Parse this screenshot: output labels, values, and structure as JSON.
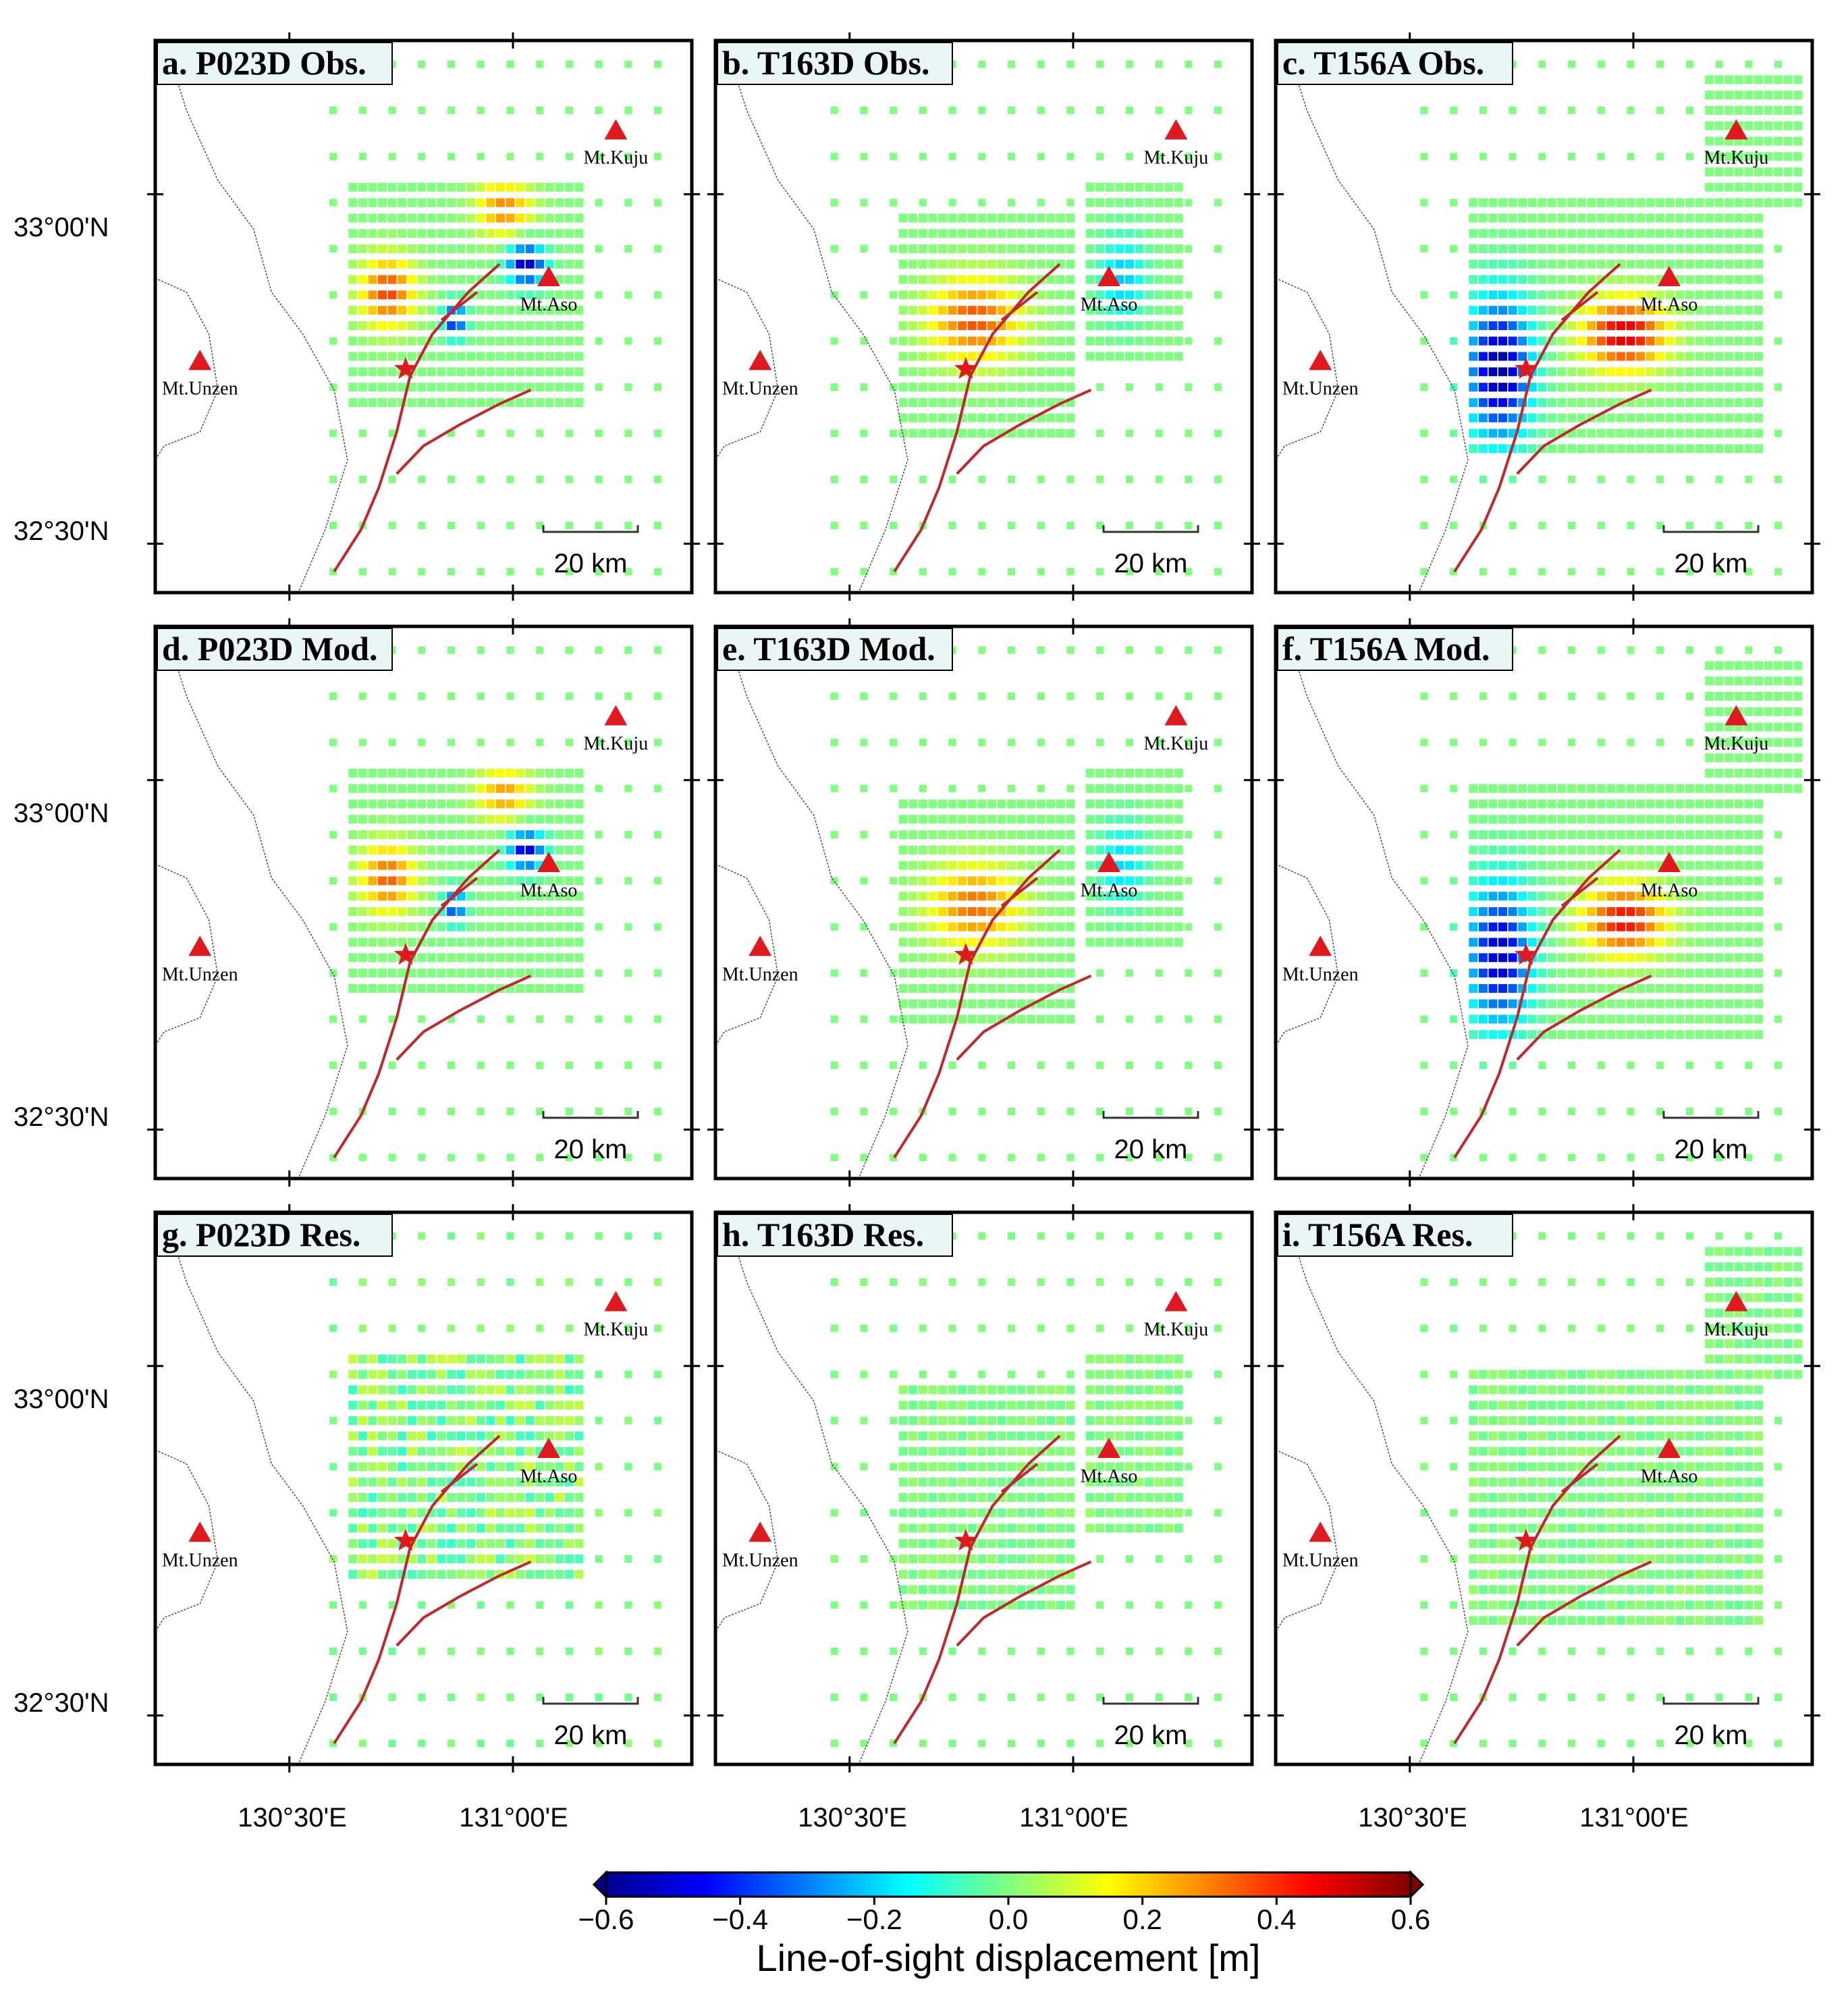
{
  "figure": {
    "panels": [
      {
        "id": "a",
        "title": "a. P023D Obs.",
        "track": "P023D",
        "kind": "obs"
      },
      {
        "id": "b",
        "title": "b. T163D Obs.",
        "track": "T163D",
        "kind": "obs"
      },
      {
        "id": "c",
        "title": "c. T156A Obs.",
        "track": "T156A",
        "kind": "obs"
      },
      {
        "id": "d",
        "title": "d. P023D Mod.",
        "track": "P023D",
        "kind": "mod"
      },
      {
        "id": "e",
        "title": "e. T163D Mod.",
        "track": "T163D",
        "kind": "mod"
      },
      {
        "id": "f",
        "title": "f. T156A Mod.",
        "track": "T156A",
        "kind": "mod"
      },
      {
        "id": "g",
        "title": "g. P023D Res.",
        "track": "P023D",
        "kind": "res"
      },
      {
        "id": "h",
        "title": "h. T163D Res.",
        "track": "T163D",
        "kind": "res"
      },
      {
        "id": "i",
        "title": "i. T156A Res.",
        "track": "T156A",
        "kind": "res"
      }
    ],
    "lat_ticks": [
      "33°00'N",
      "32°30'N"
    ],
    "lon_ticks": [
      "130°30'E",
      "131°00'E"
    ],
    "volcanoes": [
      {
        "name": "Mt.Kuju",
        "lon": 131.23,
        "lat": 33.09
      },
      {
        "name": "Mt.Aso",
        "lon": 131.08,
        "lat": 32.88
      },
      {
        "name": "Mt.Unzen",
        "lon": 130.3,
        "lat": 32.76
      }
    ],
    "epicenter": {
      "lon": 130.76,
      "lat": 32.75
    },
    "scale_bar": "20 km",
    "colorbar": {
      "min": -0.6,
      "max": 0.6,
      "ticks": [
        "-0.6",
        "-0.4",
        "-0.2",
        "0.0",
        "0.2",
        "0.4",
        "0.6"
      ],
      "label": "Line-of-sight displacement [m]",
      "colors": [
        "#00008f",
        "#0000ff",
        "#0080ff",
        "#00ffff",
        "#80ff80",
        "#ffff00",
        "#ff8000",
        "#ff0000",
        "#800000"
      ]
    },
    "colors": {
      "fault": "#c0282c",
      "volcano": "#e0191f",
      "epicenter": "#e0191f",
      "coast": "#555555"
    }
  }
}
